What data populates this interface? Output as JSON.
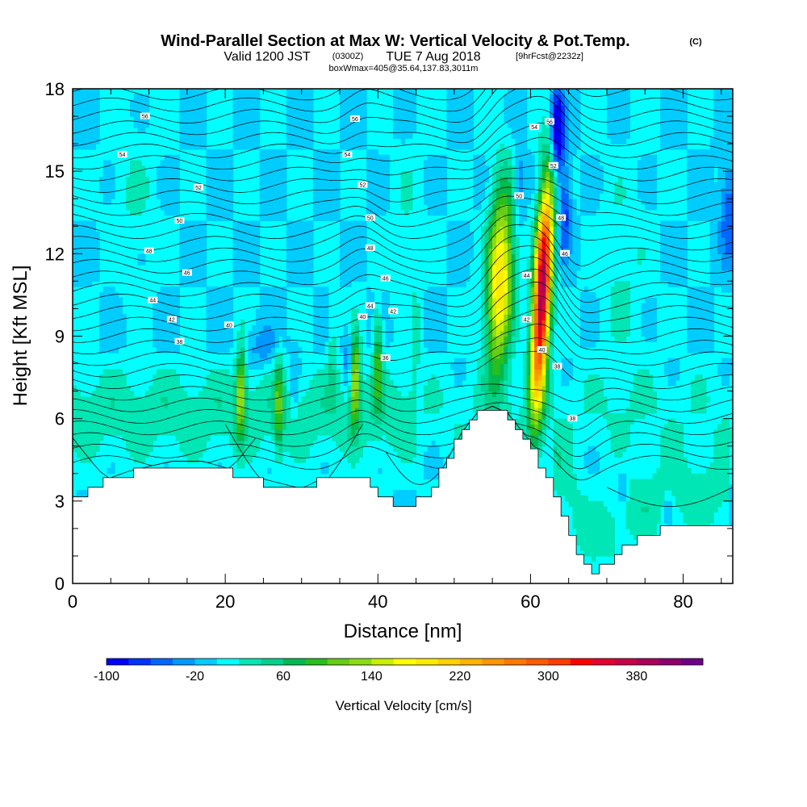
{
  "title": {
    "main": "Wind-Parallel Section at Max W: Vertical Velocity & Pot.Temp.",
    "units": "(C)",
    "valid_prefix": "Valid 1200 JST",
    "valid_z": "(0300Z)",
    "valid_date": "TUE 7 Aug 2018",
    "forecast": "[9hrFcst@2232z]",
    "box_info": "boxWmax=405@35.64,137.83,3011m"
  },
  "chart_data": {
    "type": "heatmap",
    "xlabel": "Distance [nm]",
    "ylabel": "Height [Kft MSL]",
    "xlim": [
      0,
      86.5
    ],
    "ylim": [
      0,
      18
    ],
    "x_ticks": [
      "0",
      "20",
      "40",
      "60",
      "80"
    ],
    "x_tick_values": [
      0,
      20,
      40,
      60,
      80
    ],
    "y_ticks": [
      "0",
      "3",
      "6",
      "9",
      "12",
      "15",
      "18"
    ],
    "y_tick_values": [
      0,
      3,
      6,
      9,
      12,
      15,
      18
    ],
    "colorbar": {
      "label": "Vertical Velocity [cm/s]",
      "tick_labels": [
        "-100",
        "-20",
        "60",
        "140",
        "220",
        "300",
        "380"
      ],
      "tick_values": [
        -100,
        -20,
        60,
        140,
        220,
        300,
        380
      ],
      "levels": [
        -100,
        -80,
        -60,
        -40,
        -20,
        0,
        20,
        40,
        60,
        80,
        100,
        120,
        140,
        160,
        180,
        200,
        220,
        240,
        260,
        280,
        300,
        320,
        340,
        360,
        380,
        400,
        420
      ],
      "colors": [
        "#0000ff",
        "#0033ff",
        "#0066ff",
        "#0099ff",
        "#00ccff",
        "#00ffff",
        "#00e6b4",
        "#00d28c",
        "#00b950",
        "#28be1e",
        "#64cd14",
        "#8cdc14",
        "#c8f000",
        "#ffff00",
        "#ffeb00",
        "#ffd200",
        "#ffb400",
        "#ff9600",
        "#ff7800",
        "#ff5a00",
        "#ff3c00",
        "#ff0000",
        "#e6002d",
        "#c80046",
        "#aa005a",
        "#8c006e",
        "#6e0087"
      ]
    },
    "terrain_kft": [
      {
        "x": 0,
        "h": 3.0
      },
      {
        "x": 1.5,
        "h": 3.0
      },
      {
        "x": 2.5,
        "h": 3.35
      },
      {
        "x": 4.5,
        "h": 3.7
      },
      {
        "x": 7.5,
        "h": 4.0
      },
      {
        "x": 13,
        "h": 4.35
      },
      {
        "x": 17,
        "h": 4.35
      },
      {
        "x": 21.5,
        "h": 4.0
      },
      {
        "x": 25,
        "h": 3.7
      },
      {
        "x": 30,
        "h": 3.35
      },
      {
        "x": 32.5,
        "h": 3.7
      },
      {
        "x": 36.5,
        "h": 3.7
      },
      {
        "x": 38.5,
        "h": 3.7
      },
      {
        "x": 41.5,
        "h": 3.0
      },
      {
        "x": 44,
        "h": 2.65
      },
      {
        "x": 47,
        "h": 3.35
      },
      {
        "x": 49,
        "h": 4.35
      },
      {
        "x": 51,
        "h": 5.4
      },
      {
        "x": 53,
        "h": 6.1
      },
      {
        "x": 55,
        "h": 6.35
      },
      {
        "x": 57,
        "h": 6.1
      },
      {
        "x": 59,
        "h": 5.4
      },
      {
        "x": 61,
        "h": 4.7
      },
      {
        "x": 63,
        "h": 3.35
      },
      {
        "x": 65,
        "h": 2.0
      },
      {
        "x": 66.5,
        "h": 1.0
      },
      {
        "x": 68,
        "h": 0.3
      },
      {
        "x": 70,
        "h": 0.7
      },
      {
        "x": 72,
        "h": 1.3
      },
      {
        "x": 75,
        "h": 1.7
      },
      {
        "x": 78,
        "h": 2.0
      },
      {
        "x": 86.5,
        "h": 2.0
      }
    ],
    "updraft_cores": [
      {
        "x": 61.5,
        "z": 10.5,
        "max_cm_s": 405
      },
      {
        "x": 56.0,
        "z": 11.0,
        "max_cm_s": 200
      },
      {
        "x": 37.0,
        "z": 7.5,
        "max_cm_s": 140
      },
      {
        "x": 22.0,
        "z": 7.0,
        "max_cm_s": 130
      }
    ],
    "theta_contour_labels": [
      {
        "value": "56",
        "x": 9.5,
        "z": 17.0
      },
      {
        "value": "54",
        "x": 6.5,
        "z": 15.6
      },
      {
        "value": "52",
        "x": 16.5,
        "z": 14.4
      },
      {
        "value": "50",
        "x": 14,
        "z": 13.2
      },
      {
        "value": "48",
        "x": 10,
        "z": 12.1
      },
      {
        "value": "46",
        "x": 15,
        "z": 11.3
      },
      {
        "value": "44",
        "x": 10.5,
        "z": 10.3
      },
      {
        "value": "42",
        "x": 13,
        "z": 9.6
      },
      {
        "value": "40",
        "x": 20.5,
        "z": 9.4
      },
      {
        "value": "38",
        "x": 14,
        "z": 8.8
      },
      {
        "value": "56",
        "x": 37,
        "z": 16.9
      },
      {
        "value": "54",
        "x": 36,
        "z": 15.6
      },
      {
        "value": "52",
        "x": 38,
        "z": 14.5
      },
      {
        "value": "50",
        "x": 39,
        "z": 13.3
      },
      {
        "value": "48",
        "x": 39,
        "z": 12.2
      },
      {
        "value": "46",
        "x": 41,
        "z": 11.1
      },
      {
        "value": "44",
        "x": 39,
        "z": 10.1
      },
      {
        "value": "42",
        "x": 42,
        "z": 9.9
      },
      {
        "value": "40",
        "x": 38,
        "z": 9.7
      },
      {
        "value": "36",
        "x": 41,
        "z": 8.2
      },
      {
        "value": "54",
        "x": 60.5,
        "z": 16.6
      },
      {
        "value": "56",
        "x": 62.5,
        "z": 16.8
      },
      {
        "value": "52",
        "x": 63,
        "z": 15.2
      },
      {
        "value": "50",
        "x": 58.5,
        "z": 14.1
      },
      {
        "value": "48",
        "x": 64,
        "z": 13.3
      },
      {
        "value": "46",
        "x": 64.5,
        "z": 12.0
      },
      {
        "value": "44",
        "x": 59.5,
        "z": 11.2
      },
      {
        "value": "42",
        "x": 59.5,
        "z": 9.6
      },
      {
        "value": "40",
        "x": 61.5,
        "z": 8.5
      },
      {
        "value": "38",
        "x": 63.5,
        "z": 7.9
      },
      {
        "value": "38",
        "x": 65.5,
        "z": 6.0
      }
    ]
  }
}
